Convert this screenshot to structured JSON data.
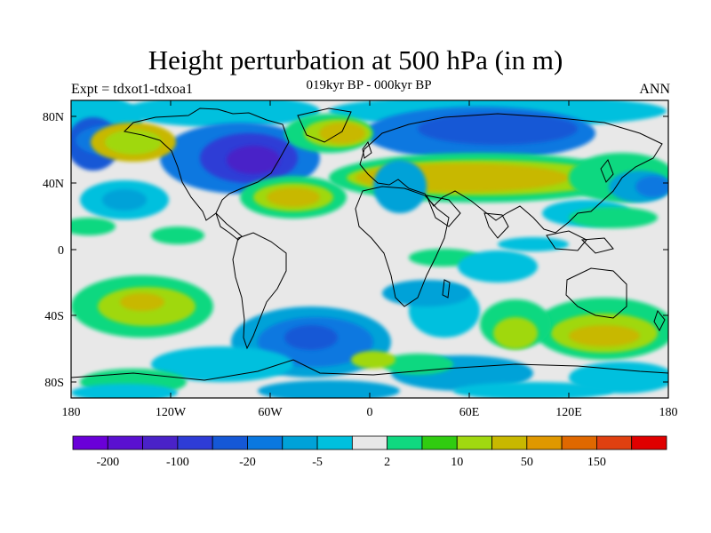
{
  "header": {
    "title": "Height perturbation at 500 hPa (in m)",
    "subtitle": "019kyr BP - 000kyr BP",
    "left_label": "Expt = tdxot1-tdxoa1",
    "right_label": "ANN"
  },
  "axes": {
    "y_ticks": [
      "80N",
      "40N",
      "0",
      "40S",
      "80S"
    ],
    "x_ticks": [
      "180",
      "120W",
      "60W",
      "0",
      "60E",
      "120E",
      "180"
    ]
  },
  "colorbar": {
    "colors": [
      "#6a00d8",
      "#5a10d0",
      "#4a22c8",
      "#2e3cd6",
      "#1558d6",
      "#0a78e0",
      "#00a2d8",
      "#00c0de",
      "#e8e8e8",
      "#10d880",
      "#30cc10",
      "#a0d810",
      "#c8b800",
      "#e09800",
      "#e06800",
      "#e04010",
      "#e00000"
    ],
    "labels": [
      "-200",
      "-100",
      "-20",
      "-5",
      "2",
      "10",
      "50",
      "150"
    ]
  },
  "map_colors": {
    "ocean": "#e8e8e8",
    "cyan": "#00c0de",
    "lightblue": "#00a2d8",
    "blue": "#0a78e0",
    "darkblue": "#1558d6",
    "navy": "#2e3cd6",
    "indigo": "#4a22c8",
    "green": "#10d880",
    "lime": "#30cc10",
    "yellowgreen": "#a0d810",
    "gold": "#c8b800"
  }
}
